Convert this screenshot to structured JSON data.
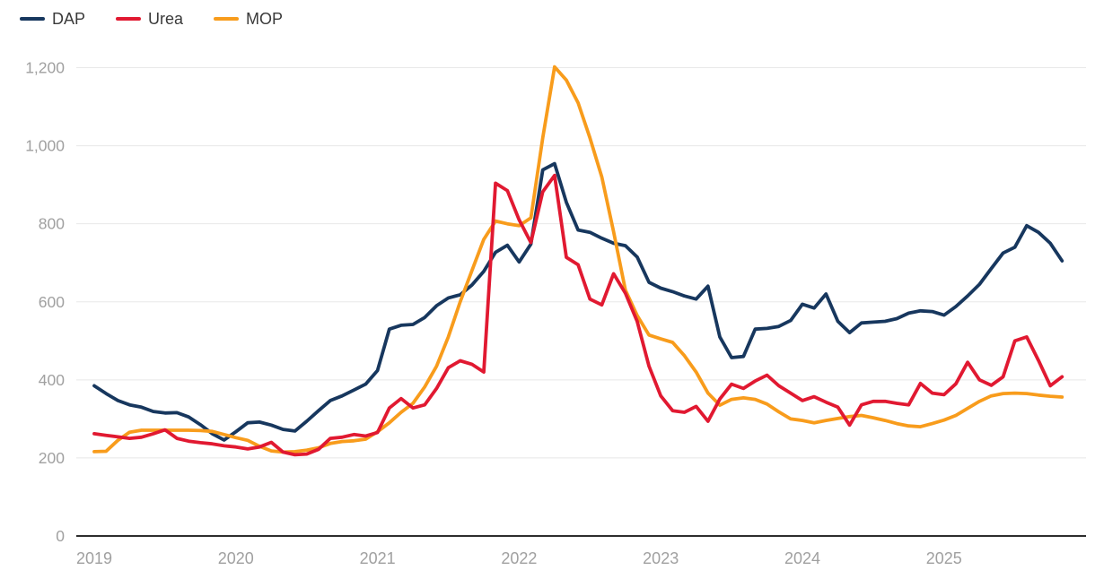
{
  "legend": {
    "position": "top-left",
    "items": [
      {
        "label": "DAP"
      },
      {
        "label": "Urea"
      },
      {
        "label": "MOP"
      }
    ]
  },
  "colors": {
    "dap_line": "#17375e",
    "urea_line": "#e11931",
    "mop_line": "#f89c1c",
    "gridline": "#e8e8e8",
    "axis_line": "#2d2d2d",
    "tick_label": "#a0a0a0",
    "legend_text": "#3a3a3a",
    "background": "#ffffff"
  },
  "chart_data": {
    "type": "line",
    "frequency": "monthly",
    "start": "2019-01",
    "end": "2025-11",
    "title": "",
    "xlabel": "",
    "ylabel": "",
    "grid": "horizontal",
    "legend_position": "top-left",
    "ylim": [
      0,
      1260
    ],
    "y_ticks": [
      0,
      200,
      400,
      600,
      800,
      1000,
      1200
    ],
    "y_tick_labels": [
      "0",
      "200",
      "400",
      "600",
      "800",
      "1,000",
      "1,200"
    ],
    "x_tick_labels": [
      "2019",
      "2020",
      "2021",
      "2022",
      "2023",
      "2024",
      "2025"
    ],
    "series": [
      {
        "name": "DAP",
        "color": "#17375e",
        "values": [
          385,
          365,
          347,
          336,
          330,
          319,
          315,
          316,
          305,
          285,
          262,
          246,
          267,
          290,
          292,
          284,
          273,
          269,
          294,
          321,
          347,
          359,
          374,
          389,
          424,
          530,
          540,
          542,
          560,
          590,
          610,
          618,
          643,
          678,
          727,
          745,
          702,
          748,
          938,
          954,
          855,
          784,
          778,
          763,
          750,
          744,
          715,
          650,
          635,
          626,
          615,
          607,
          640,
          510,
          457,
          460,
          530,
          532,
          537,
          552,
          594,
          584,
          620,
          550,
          521,
          546,
          548,
          550,
          557,
          571,
          577,
          575,
          566,
          588,
          615,
          645,
          685,
          725,
          740,
          795,
          778,
          750,
          705
        ]
      },
      {
        "name": "Urea",
        "color": "#e11931",
        "values": [
          262,
          258,
          254,
          250,
          253,
          262,
          272,
          250,
          243,
          239,
          236,
          231,
          228,
          223,
          228,
          240,
          215,
          208,
          210,
          222,
          250,
          253,
          260,
          256,
          265,
          328,
          352,
          328,
          336,
          378,
          431,
          449,
          440,
          420,
          904,
          885,
          810,
          752,
          882,
          924,
          714,
          695,
          607,
          592,
          672,
          622,
          550,
          435,
          359,
          321,
          317,
          332,
          294,
          351,
          389,
          378,
          397,
          412,
          385,
          366,
          347,
          357,
          343,
          330,
          284,
          336,
          345,
          345,
          340,
          336,
          391,
          366,
          362,
          390,
          445,
          400,
          386,
          408,
          500,
          510,
          450,
          385,
          408
        ]
      },
      {
        "name": "MOP",
        "color": "#f89c1c",
        "values": [
          216,
          217,
          245,
          266,
          271,
          271,
          271,
          271,
          271,
          270,
          268,
          260,
          252,
          245,
          230,
          218,
          215,
          216,
          220,
          226,
          237,
          242,
          244,
          248,
          267,
          290,
          317,
          340,
          382,
          435,
          510,
          600,
          680,
          760,
          807,
          800,
          795,
          815,
          1020,
          1202,
          1168,
          1110,
          1020,
          920,
          780,
          630,
          565,
          515,
          505,
          496,
          462,
          420,
          366,
          335,
          350,
          354,
          350,
          338,
          318,
          300,
          296,
          290,
          296,
          301,
          306,
          309,
          303,
          296,
          288,
          282,
          280,
          288,
          297,
          309,
          327,
          345,
          359,
          365,
          366,
          365,
          361,
          358,
          356
        ]
      }
    ]
  }
}
